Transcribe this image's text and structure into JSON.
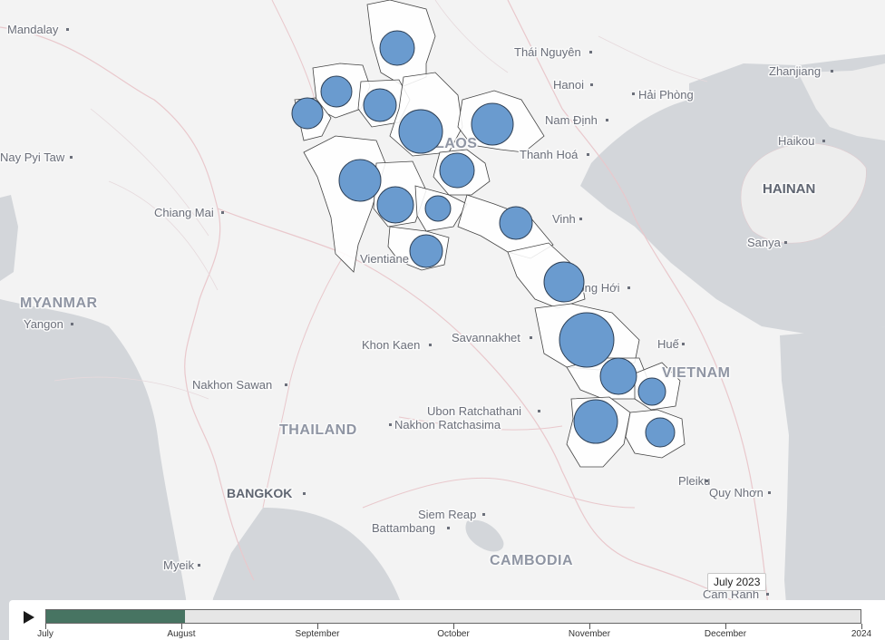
{
  "map": {
    "country_labels": [
      "MYANMAR",
      "LAOS",
      "THAILAND",
      "VIETNAM",
      "CAMBODIA",
      "HAINAN"
    ],
    "place_labels": [
      "Mandalay",
      "Nay Pyi Taw",
      "Chiang Mai",
      "Yangon",
      "Thái Nguyên",
      "Hanoi",
      "Hải Phòng",
      "Nam Định",
      "Zhanjiang",
      "Haikou",
      "Sanya",
      "Thanh Hoá",
      "Vinh",
      "Vientiane",
      "Đồng Hới",
      "Savannakhet",
      "Khon Kaen",
      "Huế",
      "Nakhon Sawan",
      "Ubon Ratchathani",
      "Nakhon Ratchasima",
      "BANGKOK",
      "Siem Reap",
      "Battambang",
      "Pleiku",
      "Quy Nhơn",
      "Myeik",
      "Cam Ranh"
    ],
    "bubble_color": "#6a9bcf"
  },
  "timeline": {
    "current_date": "July 2023",
    "months": [
      "July",
      "August",
      "September",
      "October",
      "November",
      "December",
      "2024"
    ],
    "progress": 0.17,
    "progress_color": "#477462"
  }
}
